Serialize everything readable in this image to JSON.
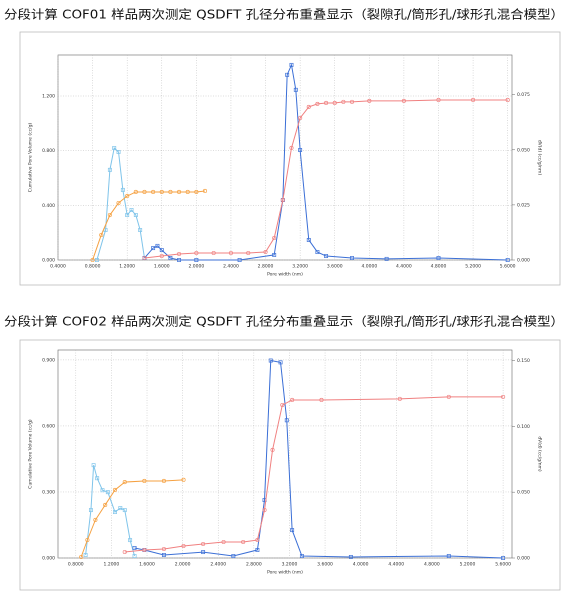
{
  "chart_data": [
    {
      "type": "line",
      "title": "分段计算 COF01 样品两次测定 QSDFT 孔径分布重叠显示（裂隙孔/筒形孔/球形孔混合模型）",
      "x_label": "Pore width (nm)",
      "y_label": "Cumulative Pore Volume (cc/g)",
      "y2_label": "dV(d) (cc/g/nm)",
      "grid": true,
      "xlim": [
        0.4,
        5.65
      ],
      "xticks": [
        {
          "value": 0.4,
          "label": "0.4000"
        },
        {
          "value": 0.8,
          "label": "0.8000"
        },
        {
          "value": 1.2,
          "label": "1.2000"
        },
        {
          "value": 1.6,
          "label": "1.6000"
        },
        {
          "value": 2.0,
          "label": "2.0000"
        },
        {
          "value": 2.4,
          "label": "2.4000"
        },
        {
          "value": 2.8,
          "label": "2.8000"
        },
        {
          "value": 3.2,
          "label": "3.2000"
        },
        {
          "value": 3.6,
          "label": "3.6000"
        },
        {
          "value": 4.0,
          "label": "4.0000"
        },
        {
          "value": 4.4,
          "label": "4.4000"
        },
        {
          "value": 4.8,
          "label": "4.8000"
        },
        {
          "value": 5.2,
          "label": "5.2000"
        },
        {
          "value": 5.6,
          "label": "5.6000"
        }
      ],
      "ylim": [
        0,
        1.5
      ],
      "yticks": [
        {
          "value": 0,
          "label": "0.000"
        },
        {
          "value": 0.4,
          "label": "0.400"
        },
        {
          "value": 0.8,
          "label": "0.800"
        },
        {
          "value": 1.2,
          "label": "1.200"
        }
      ],
      "y2lim": [
        0,
        0.093
      ],
      "y2ticks": [
        {
          "value": 0,
          "label": "0.000"
        },
        {
          "value": 0.025,
          "label": "0.025"
        },
        {
          "value": 0.05,
          "label": "0.050"
        },
        {
          "value": 0.075,
          "label": "0.075"
        }
      ],
      "series": [
        {
          "color": "#7fc4ea",
          "axis": "y2",
          "marker": "square",
          "x": [
            0.85,
            0.95,
            1.0,
            1.05,
            1.1,
            1.15,
            1.2,
            1.25,
            1.3,
            1.35,
            1.4
          ],
          "values": [
            0,
            0.0136,
            0.0409,
            0.0508,
            0.049,
            0.0318,
            0.0204,
            0.0227,
            0.0204,
            0.0136,
            0.0009
          ]
        },
        {
          "color": "#3b6fd6",
          "axis": "y2",
          "marker": "square",
          "x": [
            1.4,
            1.5,
            1.55,
            1.6,
            1.7,
            1.8,
            2.0,
            2.5,
            2.9,
            3.0,
            3.05,
            3.1,
            3.15,
            3.2,
            3.3,
            3.4,
            3.5,
            3.8,
            4.2,
            4.8,
            5.6
          ],
          "values": [
            0.0009,
            0.0054,
            0.0064,
            0.0045,
            0.0009,
            0,
            0,
            0,
            0.0023,
            0.0272,
            0.084,
            0.0885,
            0.0772,
            0.0499,
            0.0091,
            0.0036,
            0.0018,
            0.0009,
            0.0005,
            0.0009,
            0
          ]
        },
        {
          "color": "#f5a142",
          "marker": "circle",
          "x": [
            0.8,
            0.9,
            1.0,
            1.1,
            1.2,
            1.3,
            1.4,
            1.5,
            1.6,
            1.7,
            1.8,
            1.9,
            2.0,
            2.1
          ],
          "values": [
            0,
            0.183,
            0.329,
            0.417,
            0.468,
            0.498,
            0.498,
            0.498,
            0.498,
            0.498,
            0.498,
            0.498,
            0.498,
            0.505
          ]
        },
        {
          "color": "#f08080",
          "marker": "circle",
          "x": [
            1.4,
            1.6,
            1.8,
            2.0,
            2.2,
            2.4,
            2.6,
            2.8,
            2.9,
            3.0,
            3.1,
            3.2,
            3.3,
            3.4,
            3.5,
            3.6,
            3.7,
            3.8,
            4.0,
            4.4,
            4.8,
            5.2,
            5.6
          ],
          "values": [
            0.0146,
            0.0293,
            0.0439,
            0.0512,
            0.0512,
            0.0512,
            0.0512,
            0.0586,
            0.161,
            0.439,
            0.82,
            1.039,
            1.12,
            1.142,
            1.149,
            1.149,
            1.157,
            1.157,
            1.164,
            1.164,
            1.171,
            1.171,
            1.171
          ]
        }
      ]
    },
    {
      "type": "line",
      "title": "分段计算 COF02 样品两次测定 QSDFT 孔径分布重叠显示（裂隙孔/筒形孔/球形孔混合模型）",
      "x_label": "Pore width (nm)",
      "y_label": "Cumulative Pore Volume (cc/g)",
      "y2_label": "dV(d) (cc/g/nm)",
      "grid": true,
      "xlim": [
        0.6,
        5.7
      ],
      "xticks": [
        {
          "value": 0.8,
          "label": "0.8000"
        },
        {
          "value": 1.2,
          "label": "1.2000"
        },
        {
          "value": 1.6,
          "label": "1.6000"
        },
        {
          "value": 2.0,
          "label": "2.0000"
        },
        {
          "value": 2.4,
          "label": "2.4000"
        },
        {
          "value": 2.8,
          "label": "2.8000"
        },
        {
          "value": 3.2,
          "label": "3.2000"
        },
        {
          "value": 3.6,
          "label": "3.6000"
        },
        {
          "value": 4.0,
          "label": "4.0000"
        },
        {
          "value": 4.4,
          "label": "4.4000"
        },
        {
          "value": 4.8,
          "label": "4.8000"
        },
        {
          "value": 5.2,
          "label": "5.2000"
        },
        {
          "value": 5.6,
          "label": "5.6000"
        }
      ],
      "ylim": [
        0,
        0.945
      ],
      "yticks": [
        {
          "value": 0,
          "label": "0.000"
        },
        {
          "value": 0.3,
          "label": "0.300"
        },
        {
          "value": 0.6,
          "label": "0.600"
        },
        {
          "value": 0.9,
          "label": "0.900"
        }
      ],
      "y2lim": [
        0,
        0.158
      ],
      "y2ticks": [
        {
          "value": 0,
          "label": "0.000"
        },
        {
          "value": 0.05,
          "label": "0.050"
        },
        {
          "value": 0.1,
          "label": "0.100"
        },
        {
          "value": 0.15,
          "label": "0.150"
        }
      ],
      "series": [
        {
          "color": "#7fc4ea",
          "axis": "y2",
          "marker": "square",
          "x": [
            0.91,
            0.97,
            1.0,
            1.04,
            1.1,
            1.16,
            1.24,
            1.3,
            1.35,
            1.41,
            1.46
          ],
          "values": [
            0.0023,
            0.0364,
            0.0705,
            0.0606,
            0.0515,
            0.05,
            0.0349,
            0.0379,
            0.0364,
            0.0136,
            0.0015
          ]
        },
        {
          "color": "#3b6fd6",
          "axis": "y2",
          "marker": "square",
          "x": [
            1.46,
            1.57,
            1.79,
            2.23,
            2.57,
            2.84,
            2.92,
            2.99,
            3.1,
            3.17,
            3.23,
            3.34,
            3.89,
            4.99,
            5.6
          ],
          "values": [
            0.0076,
            0.0061,
            0.0023,
            0.0045,
            0.0015,
            0.0061,
            0.044,
            0.15,
            0.1486,
            0.1046,
            0.0212,
            0.0015,
            0.0008,
            0.0015,
            0
          ]
        },
        {
          "color": "#f5a142",
          "marker": "circle",
          "x": [
            0.86,
            0.93,
            1.02,
            1.13,
            1.24,
            1.35,
            1.57,
            1.79,
            2.01
          ],
          "values": [
            0.0045,
            0.0818,
            0.173,
            0.241,
            0.309,
            0.345,
            0.35,
            0.35,
            0.355
          ]
        },
        {
          "color": "#f08080",
          "marker": "circle",
          "x": [
            1.35,
            1.57,
            1.79,
            2.01,
            2.23,
            2.46,
            2.68,
            2.84,
            2.92,
            3.01,
            3.12,
            3.23,
            3.56,
            4.44,
            4.99,
            5.6
          ],
          "values": [
            0.0273,
            0.0364,
            0.0409,
            0.0545,
            0.0636,
            0.0727,
            0.0727,
            0.0818,
            0.218,
            0.491,
            0.695,
            0.718,
            0.718,
            0.723,
            0.732,
            0.732
          ]
        }
      ]
    }
  ]
}
